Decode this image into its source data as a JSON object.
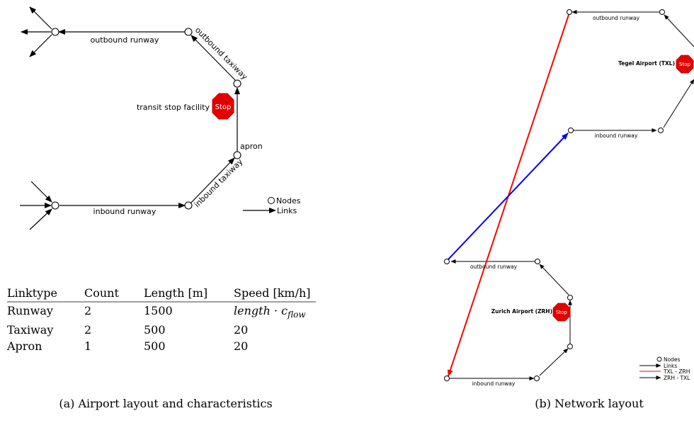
{
  "panel_a": {
    "labels": {
      "outbound_runway": "outbound runway",
      "outbound_taxiway": "outbound taxiway",
      "transit_stop": "transit stop facility",
      "stop_sign": "Stop",
      "apron": "apron",
      "inbound_taxiway": "inbound taxiway",
      "inbound_runway": "inbound runway"
    },
    "legend": {
      "nodes": "Nodes",
      "links": "Links"
    },
    "table": {
      "headers": [
        "Linktype",
        "Count",
        "Length [m]",
        "Speed [km/h]"
      ],
      "rows": [
        [
          "Runway",
          "2",
          "1500",
          "length · c"
        ],
        [
          "Taxiway",
          "2",
          "500",
          "20"
        ],
        [
          "Apron",
          "1",
          "500",
          "20"
        ]
      ],
      "speed_subscript": "flow"
    },
    "caption": "(a) Airport layout and characteristics"
  },
  "panel_b": {
    "labels": {
      "txl_outbound_runway": "outbound runway",
      "txl_airport": "Tegel Airport (TXL)",
      "txl_inbound_runway": "inbound runway",
      "zrh_outbound_runway": "outbound runway",
      "zrh_airport": "Zurich Airport (ZRH)",
      "zrh_inbound_runway": "inbound runway",
      "stop_sign": "Stop"
    },
    "legend": {
      "nodes": "Nodes",
      "links": "Links",
      "txl_zrh": "TXL - ZRH",
      "zrh_txl": "ZRH - TXL"
    },
    "caption": "(b) Network layout",
    "colors": {
      "txl_zrh": "#ff0000",
      "zrh_txl": "#0000ff"
    }
  }
}
